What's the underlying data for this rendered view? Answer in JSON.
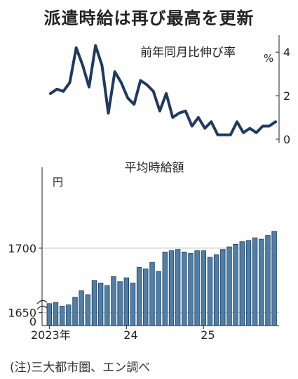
{
  "title": "派遣時給は再び最高を更新",
  "footnote": "(注)三大都市圏、エン調べ",
  "chart_data": [
    {
      "type": "line",
      "title": "前年同月比伸び率",
      "ylabel": "%",
      "ylim": [
        0,
        4.2
      ],
      "yticks": [
        "0",
        "2",
        "4"
      ],
      "values": [
        2.1,
        2.3,
        2.2,
        2.6,
        4.2,
        3.4,
        2.4,
        4.3,
        3.4,
        1.2,
        3.1,
        2.6,
        1.9,
        1.6,
        2.7,
        2.5,
        2.2,
        1.3,
        2.1,
        1.0,
        1.2,
        1.3,
        0.6,
        1.0,
        0.5,
        0.8,
        0.2,
        0.2,
        0.2,
        0.8,
        0.3,
        0.5,
        0.3,
        0.6,
        0.6,
        0.8
      ],
      "color": "#1f3a5f"
    },
    {
      "type": "bar",
      "title": "平均時給額",
      "ylabel": "円",
      "ylim": [
        1640,
        1755
      ],
      "yticks": [
        "1650",
        "1700"
      ],
      "zero_label": "0",
      "xticks": [
        "2023年",
        "24",
        "25"
      ],
      "values": [
        1657,
        1658,
        1655,
        1656,
        1662,
        1667,
        1664,
        1675,
        1673,
        1671,
        1678,
        1674,
        1677,
        1673,
        1685,
        1684,
        1689,
        1682,
        1697,
        1698,
        1699,
        1697,
        1696,
        1698,
        1698,
        1693,
        1695,
        1699,
        1701,
        1703,
        1705,
        1706,
        1708,
        1707,
        1710,
        1713
      ],
      "color": "#4f7ea6",
      "edge": "#1d3d5f"
    }
  ]
}
